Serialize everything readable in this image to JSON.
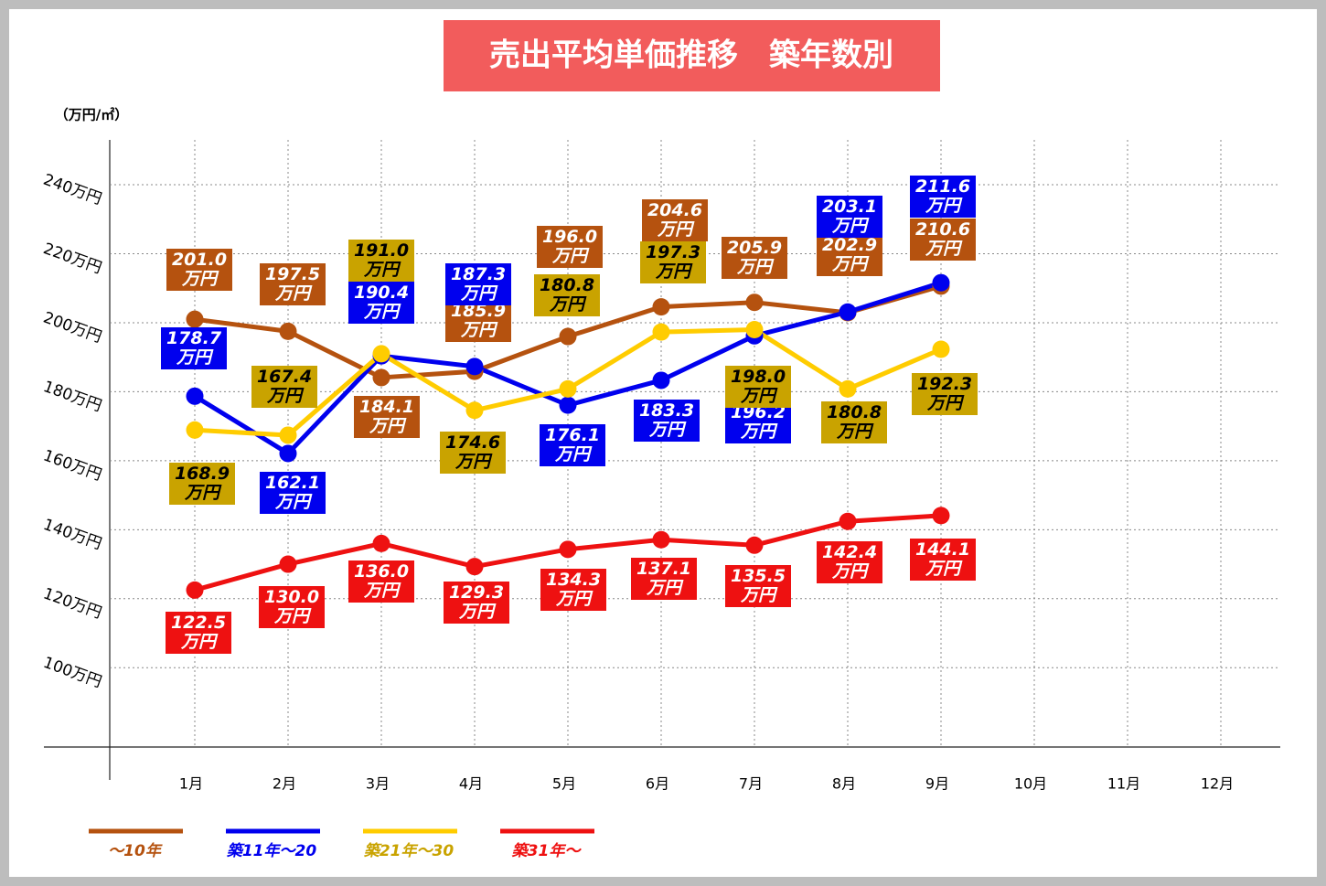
{
  "chart_data": {
    "type": "line",
    "title": "売出平均単価推移　築年数別",
    "y_axis_label": "（万円/㎡）",
    "categories": [
      "1月",
      "2月",
      "3月",
      "4月",
      "5月",
      "6月",
      "7月",
      "8月",
      "9月",
      "10月",
      "11月",
      "12月"
    ],
    "ylim": [
      77,
      253
    ],
    "yticks": [
      {
        "value": 100,
        "label": "100万円"
      },
      {
        "value": 120,
        "label": "120万円"
      },
      {
        "value": 140,
        "label": "140万円"
      },
      {
        "value": 160,
        "label": "160万円"
      },
      {
        "value": 180,
        "label": "180万円"
      },
      {
        "value": 200,
        "label": "200万円"
      },
      {
        "value": 220,
        "label": "220万円"
      },
      {
        "value": 240,
        "label": "240万円"
      }
    ],
    "grid": true,
    "legend": "bottom-left",
    "series": [
      {
        "name": "～10年",
        "color": "#b5520f",
        "label_color": "#b5520f",
        "label_text_color": "#ffffff",
        "values": [
          201.0,
          197.5,
          184.1,
          185.9,
          196.0,
          204.6,
          205.9,
          202.9,
          210.6,
          null,
          null,
          null
        ],
        "value_labels": [
          "201.0万円",
          "197.5万円",
          "184.1万円",
          "185.9万円",
          "196.0万円",
          "204.6万円",
          "205.9万円",
          "202.9万円",
          "210.6万円",
          null,
          null,
          null
        ]
      },
      {
        "name": "築11年～20",
        "color": "#0000ee",
        "label_color": "#0000ee",
        "label_text_color": "#ffffff",
        "values": [
          178.7,
          162.1,
          190.4,
          187.3,
          176.1,
          183.3,
          196.2,
          203.1,
          211.6,
          null,
          null,
          null
        ],
        "value_labels": [
          "178.7万円",
          "162.1万円",
          "190.4万円",
          "187.3万円",
          "176.1万円",
          "183.3万円",
          "196.2万円",
          "203.1万円",
          "211.6万円",
          null,
          null,
          null
        ]
      },
      {
        "name": "築21年～30",
        "color": "#ffcc00",
        "label_color": "#c9a300",
        "label_text_color": "#000000",
        "values": [
          168.9,
          167.4,
          191.0,
          174.6,
          180.8,
          197.3,
          198.0,
          180.8,
          192.3,
          null,
          null,
          null
        ],
        "value_labels": [
          "168.9万円",
          "167.4万円",
          "191.0万円",
          "174.6万円",
          "180.8万円",
          "197.3万円",
          "198.0万円",
          "180.8万円",
          "192.3万円",
          null,
          null,
          null
        ]
      },
      {
        "name": "築31年～",
        "color": "#ee1111",
        "label_color": "#ee1111",
        "label_text_color": "#ffffff",
        "values": [
          122.5,
          130.0,
          136.0,
          129.3,
          134.3,
          137.1,
          135.5,
          142.4,
          144.1,
          null,
          null,
          null
        ],
        "value_labels": [
          "122.5万円",
          "130.0万円",
          "136.0万円",
          "129.3万円",
          "134.3万円",
          "137.1万円",
          "135.5万円",
          "142.4万円",
          "144.1万円",
          null,
          null,
          null
        ]
      }
    ]
  }
}
